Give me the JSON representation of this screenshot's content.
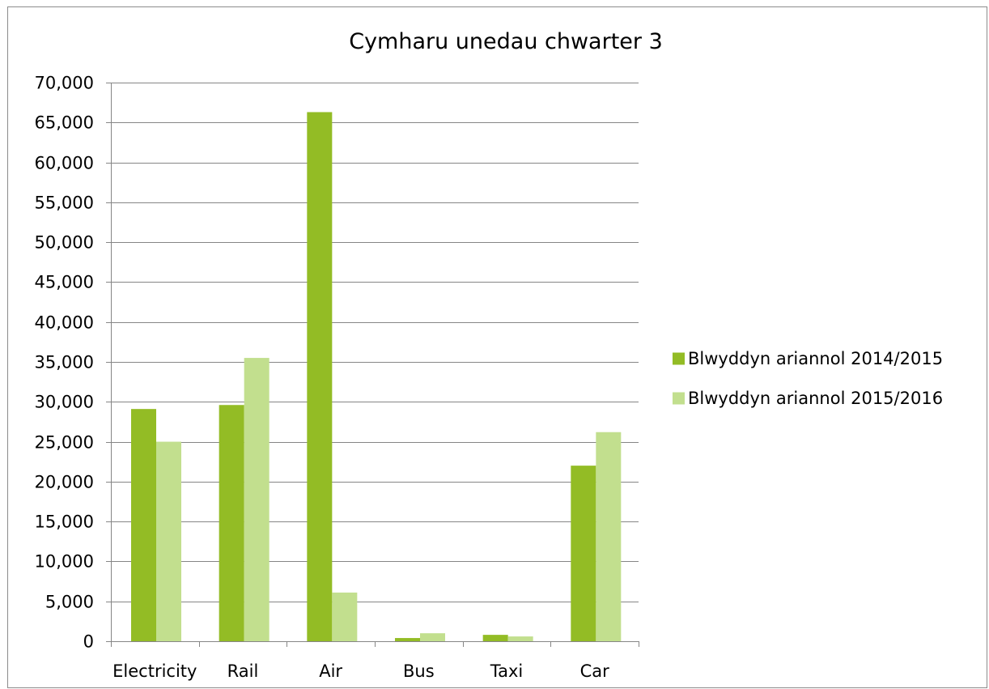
{
  "chart_data": {
    "type": "bar",
    "title": "Cymharu unedau chwarter 3",
    "xlabel": "",
    "ylabel": "",
    "categories": [
      "Electricity",
      "Rail",
      "Air",
      "Bus",
      "Taxi",
      "Car"
    ],
    "series": [
      {
        "name": "Blwyddyn ariannol 2014/2015",
        "color": "#93bc25",
        "values": [
          29100,
          29600,
          66300,
          400,
          800,
          22000
        ]
      },
      {
        "name": "Blwyddyn ariannol 2015/2016",
        "color": "#c2df8e",
        "values": [
          25000,
          35500,
          6100,
          1000,
          600,
          26200
        ]
      }
    ],
    "ylim": [
      0,
      70000
    ],
    "yticks": [
      0,
      5000,
      10000,
      15000,
      20000,
      25000,
      30000,
      35000,
      40000,
      45000,
      50000,
      55000,
      60000,
      65000,
      70000
    ],
    "ytick_labels": [
      "0",
      "5,000",
      "10,000",
      "15,000",
      "20,000",
      "25,000",
      "30,000",
      "35,000",
      "40,000",
      "45,000",
      "50,000",
      "55,000",
      "60,000",
      "65,000",
      "70,000"
    ],
    "grid": true,
    "legend_position": "right",
    "gridline_color": "#868686",
    "axis_color": "#868686"
  }
}
